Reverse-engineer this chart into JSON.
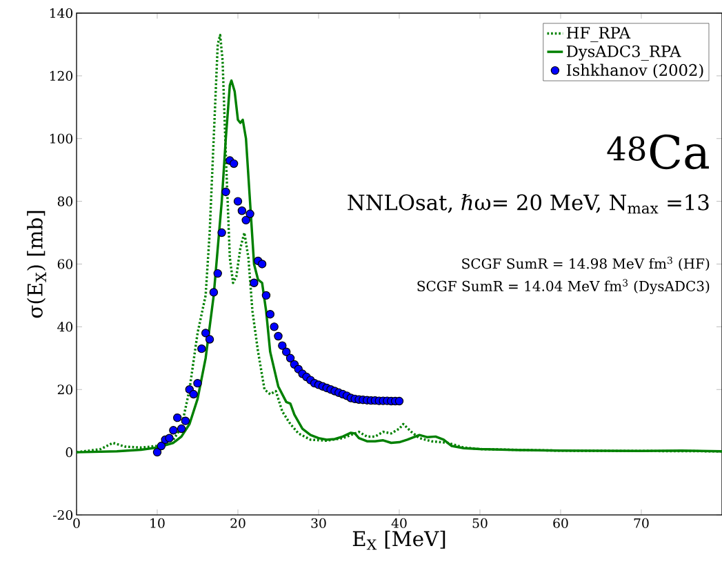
{
  "chart_data": {
    "type": "line",
    "xlabel": "E$_{X}$ [MeV]",
    "ylabel": "σ(E$_{X}$) [mb]",
    "xlim": [
      0,
      80
    ],
    "ylim": [
      -20,
      140
    ],
    "xticks": [
      0,
      10,
      20,
      30,
      40,
      50,
      60,
      70
    ],
    "yticks": [
      -20,
      0,
      20,
      40,
      60,
      80,
      100,
      120,
      140
    ],
    "legend": "top right",
    "annotations": [
      "$^{48}$Ca",
      "NNLOsat, ℏω= 20 MeV, N$_{max}$ =13",
      "SCGF SumR = 14.98 MeV fm$^{3}$ (HF)",
      "SCGF SumR = 14.04 MeV fm$^{3}$ (DysADC3)"
    ],
    "series": [
      {
        "name": "HF_RPA",
        "color": "#008000",
        "line_style": "dotted",
        "marker": "none",
        "x": [
          0,
          3,
          4.5,
          6,
          8,
          10,
          12,
          13,
          14,
          15,
          16,
          16.5,
          17,
          17.5,
          17.8,
          18.1,
          18.5,
          19,
          19.4,
          19.8,
          20.3,
          20.8,
          21.3,
          21.8,
          22.5,
          23.3,
          24,
          24.7,
          25.5,
          26.5,
          27.5,
          29,
          31,
          33,
          34,
          35,
          36,
          37,
          38,
          39,
          40,
          40.5,
          41.5,
          42.5,
          44,
          46,
          48,
          50,
          60,
          70,
          80
        ],
        "values": [
          0,
          1,
          3,
          1.8,
          1.5,
          2,
          4,
          8,
          20,
          38,
          50,
          70,
          100,
          130,
          133,
          125,
          95,
          62,
          54,
          56,
          65,
          70,
          62,
          45,
          32,
          20,
          18.5,
          19.5,
          13,
          9,
          6,
          4,
          3.7,
          4.5,
          5.5,
          6.5,
          5,
          5,
          6.5,
          6,
          7.5,
          9,
          6.5,
          4.5,
          3.5,
          3,
          1.5,
          1,
          0.5,
          0.4,
          0.3
        ]
      },
      {
        "name": "DysADC3_RPA",
        "color": "#008000",
        "line_style": "solid",
        "marker": "none",
        "x": [
          0,
          5,
          8,
          10,
          12,
          13,
          14,
          15,
          16,
          17,
          18,
          18.5,
          19,
          19.2,
          19.6,
          20,
          20.3,
          20.6,
          21,
          21.5,
          22,
          22.5,
          23,
          23.5,
          24,
          25,
          26,
          26.5,
          27,
          28,
          29,
          30,
          31,
          32,
          33,
          34,
          34.5,
          35,
          36,
          37,
          38,
          39,
          40,
          41,
          42,
          42.5,
          43.5,
          44.5,
          45.5,
          46.5,
          48,
          50,
          55,
          60,
          70,
          75,
          80
        ],
        "values": [
          0,
          0.3,
          0.8,
          1.5,
          3,
          5,
          9,
          17,
          30,
          50,
          80,
          100,
          117,
          118.5,
          115,
          106,
          105,
          106,
          100,
          80,
          60,
          55,
          54,
          45,
          32,
          21,
          16,
          15.5,
          12,
          7.5,
          5.5,
          4.5,
          4,
          4.2,
          5,
          6.2,
          6,
          4.5,
          3.5,
          3.5,
          3.8,
          3,
          3.2,
          4,
          5,
          5.5,
          4.8,
          5,
          4,
          2,
          1.3,
          1,
          0.7,
          0.5,
          0.4,
          0.5,
          0.3
        ]
      },
      {
        "name": "Ishkhanov (2002)",
        "type": "scatter",
        "color": "#0000ff",
        "marker": "circle",
        "x": [
          10,
          10.5,
          11,
          11.5,
          12,
          12.5,
          13,
          13.5,
          14,
          14.5,
          15,
          15.5,
          16,
          16.5,
          17,
          17.5,
          18,
          18.5,
          19,
          19.5,
          20,
          20.5,
          21,
          21.5,
          22,
          22.5,
          23,
          23.5,
          24,
          24.5,
          25,
          25.5,
          26,
          26.5,
          27,
          27.5,
          28,
          28.5,
          29,
          29.5,
          30,
          30.5,
          31,
          31.5,
          32,
          32.5,
          33,
          33.5,
          34,
          34.5,
          35,
          35.5,
          36,
          36.5,
          37,
          37.5,
          38,
          38.5,
          39,
          39.5,
          40
        ],
        "values": [
          0,
          2,
          4,
          4.5,
          7,
          11,
          7.5,
          10,
          20,
          18.5,
          22,
          33,
          38,
          36,
          51,
          57,
          70,
          83,
          93,
          92,
          80,
          77,
          74,
          76,
          54,
          61,
          60,
          50,
          44,
          40,
          37,
          34,
          32,
          30,
          28,
          26.5,
          25,
          24,
          23,
          22,
          21.5,
          21,
          20.5,
          20,
          19.5,
          19,
          18.5,
          18,
          17.3,
          17,
          16.8,
          16.7,
          16.6,
          16.5,
          16.5,
          16.4,
          16.4,
          16.4,
          16.3,
          16.3,
          16.3
        ]
      }
    ]
  }
}
